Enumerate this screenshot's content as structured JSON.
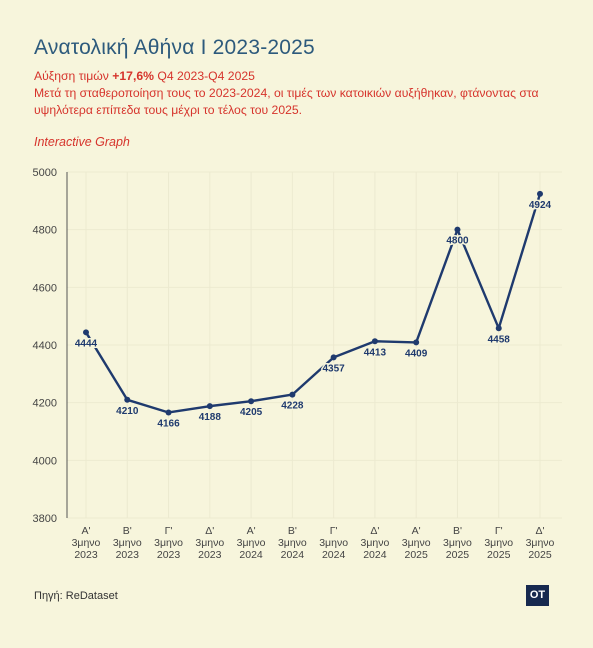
{
  "header": {
    "title": "Ανατολική Αθήνα Ι 2023-2025",
    "subtitle_prefix": "Αύξηση τιμών ",
    "subtitle_highlight": "+17,6%",
    "subtitle_suffix": " Q4 2023-Q4 2025",
    "description": "Μετά τη σταθεροποίηση τους το 2023-2024, οι τιμές των κατοικιών αυξήθηκαν, φτάνοντας στα υψηλότερα επίπεδα τους μέχρι το τέλος του 2025.",
    "interactive_label": "Interactive Graph"
  },
  "footer": {
    "source": "Πηγή: ReDataset",
    "logo_text": "OT"
  },
  "colors": {
    "line": "#1f3a6e",
    "grid": "#ecead0",
    "accent": "#d6342c"
  },
  "chart_data": {
    "type": "line",
    "categories": [
      [
        "Α'",
        "3μηνο",
        "2023"
      ],
      [
        "Β'",
        "3μηνο",
        "2023"
      ],
      [
        "Γ'",
        "3μηνο",
        "2023"
      ],
      [
        "Δ'",
        "3μηνο",
        "2023"
      ],
      [
        "Α'",
        "3μηνο",
        "2024"
      ],
      [
        "Β'",
        "3μηνο",
        "2024"
      ],
      [
        "Γ'",
        "3μηνο",
        "2024"
      ],
      [
        "Δ'",
        "3μηνο",
        "2024"
      ],
      [
        "Α'",
        "3μηνο",
        "2025"
      ],
      [
        "Β'",
        "3μηνο",
        "2025"
      ],
      [
        "Γ'",
        "3μηνο",
        "2025"
      ],
      [
        "Δ'",
        "3μηνο",
        "2025"
      ]
    ],
    "series": [
      {
        "values": [
          4444,
          4210,
          4166,
          4188,
          4205,
          4228,
          4357,
          4413,
          4409,
          4800,
          4458,
          4924
        ]
      }
    ],
    "ylim": [
      3800,
      5000
    ],
    "yticks": [
      3800,
      4000,
      4200,
      4400,
      4600,
      4800,
      5000
    ],
    "grid": true
  }
}
